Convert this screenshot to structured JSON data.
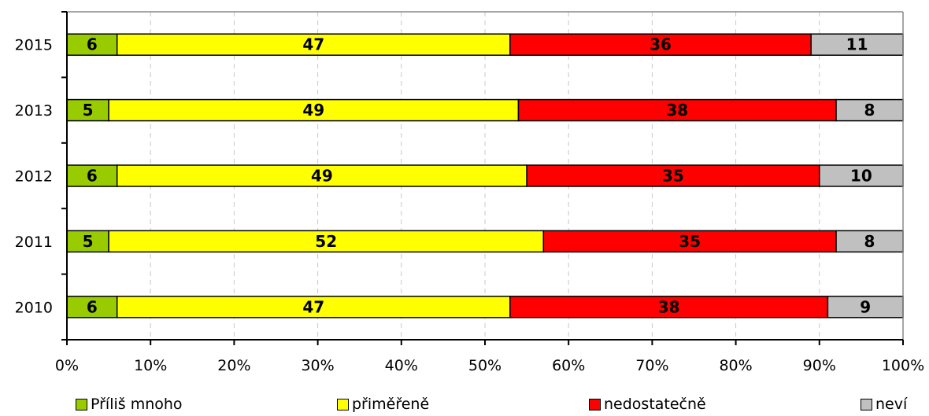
{
  "chart_data": {
    "type": "bar",
    "orientation": "horizontal",
    "stacked": "percent",
    "categories": [
      "2015",
      "2013",
      "2012",
      "2011",
      "2010"
    ],
    "series": [
      {
        "name": "Příliš mnoho",
        "color": "#99cc00",
        "values": [
          6,
          5,
          6,
          5,
          6
        ]
      },
      {
        "name": "přiměřeně",
        "color": "#ffff00",
        "values": [
          47,
          49,
          49,
          52,
          47
        ]
      },
      {
        "name": "nedostatečně",
        "color": "#ff0000",
        "values": [
          36,
          38,
          35,
          35,
          38
        ]
      },
      {
        "name": "neví",
        "color": "#c0c0c0",
        "values": [
          11,
          8,
          10,
          8,
          9
        ]
      }
    ],
    "xlim": [
      0,
      100
    ],
    "xticks": [
      "0%",
      "10%",
      "20%",
      "30%",
      "40%",
      "50%",
      "60%",
      "70%",
      "80%",
      "90%",
      "100%"
    ],
    "grid": "vertical-dashed",
    "legend_position": "bottom",
    "title": "",
    "xlabel": "",
    "ylabel": ""
  }
}
